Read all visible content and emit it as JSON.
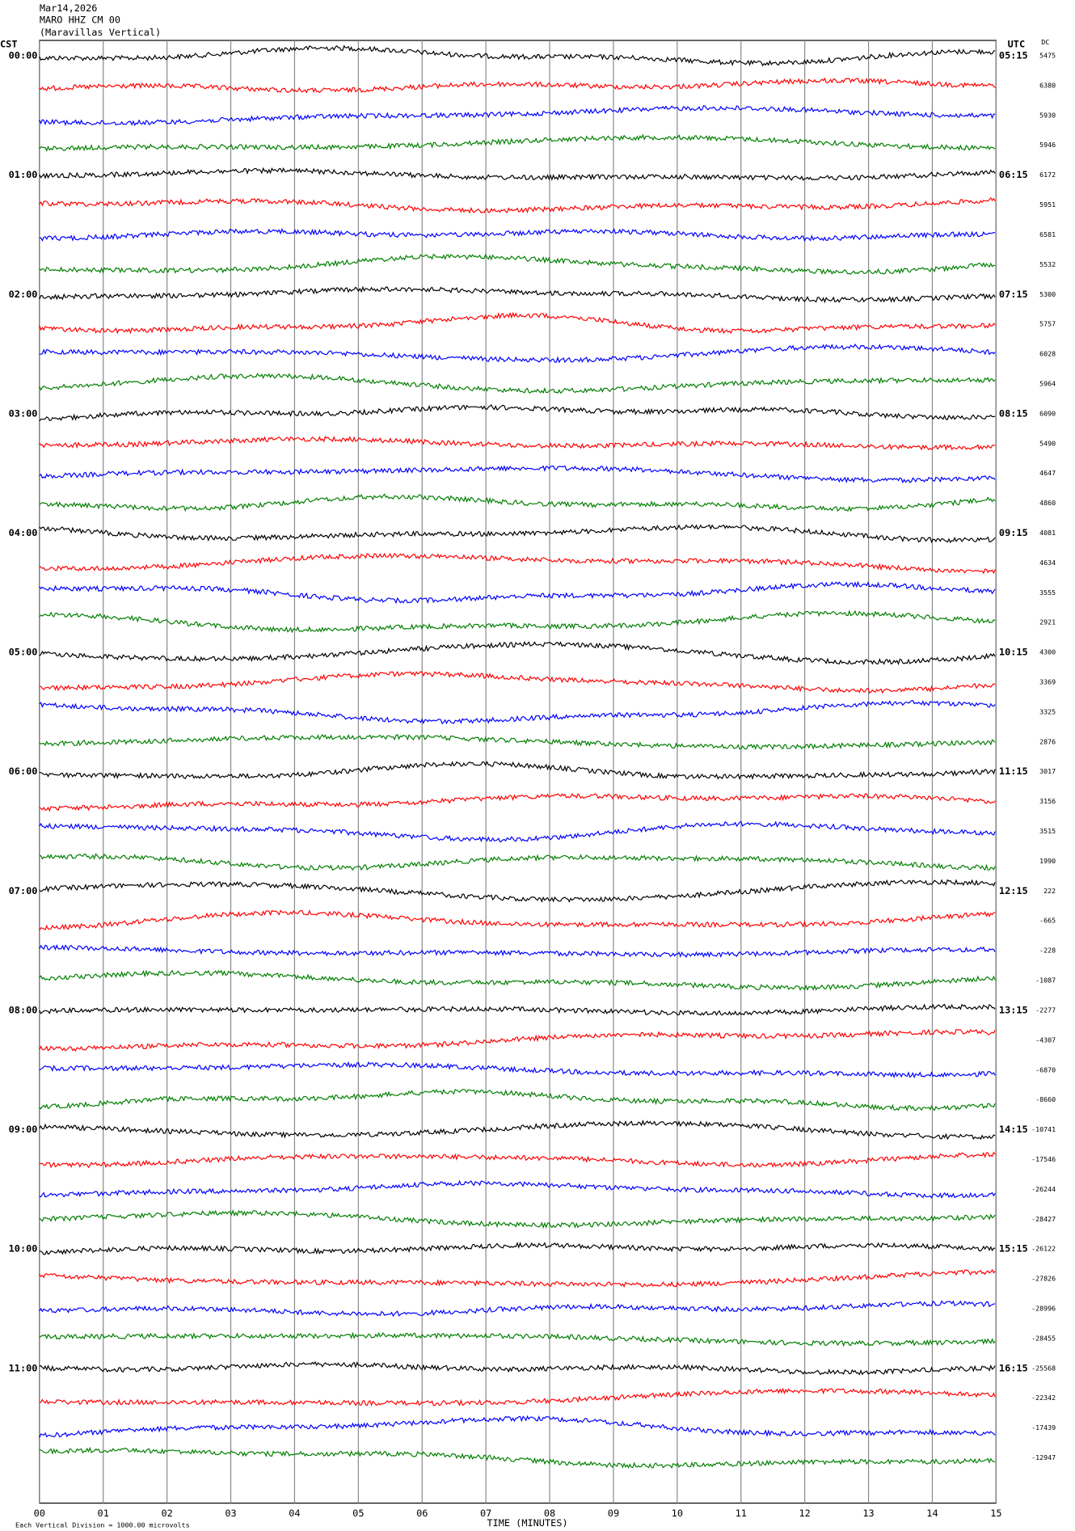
{
  "chart_data": {
    "type": "helicorder",
    "title_lines": [
      "Mar14,2026",
      "MARO HHZ CM 00",
      "(Maravillas Vertical)"
    ],
    "left_axis_label": "CST",
    "right_axis_label": "UTC",
    "dc_label": "DC",
    "left_labels": [
      "00:00",
      "01:00",
      "02:00",
      "03:00",
      "04:00",
      "05:00",
      "06:00",
      "07:00",
      "08:00",
      "09:00",
      "10:00",
      "11:00"
    ],
    "right_labels": [
      "05:15",
      "06:15",
      "07:15",
      "08:15",
      "09:15",
      "10:15",
      "11:15",
      "12:15",
      "13:15",
      "14:15",
      "15:15",
      "16:15"
    ],
    "dc": [
      5475,
      6380,
      5930,
      5946,
      6172,
      5951,
      6581,
      5532,
      5300,
      5757,
      6028,
      5964,
      6090,
      5490,
      4647,
      4860,
      4081,
      4634,
      3555,
      2921,
      4300,
      3369,
      3325,
      2876,
      3017,
      3156,
      3515,
      1990,
      222,
      -665,
      -228,
      -1087,
      -2277,
      -4307,
      -6870,
      -8660,
      -10741,
      -17546,
      -26244,
      -28427,
      -26122,
      -27826,
      -28996,
      -28455,
      -25568,
      -22342,
      -17439,
      -12947
    ],
    "trace_colors": [
      "#000000",
      "#ff0000",
      "#0000ff",
      "#007f00"
    ],
    "xlim": [
      0,
      15
    ],
    "xticks": [
      {
        "value": 0,
        "label": "00"
      },
      {
        "value": 1,
        "label": "01"
      },
      {
        "value": 2,
        "label": "02"
      },
      {
        "value": 3,
        "label": "03"
      },
      {
        "value": 4,
        "label": "04"
      },
      {
        "value": 5,
        "label": "05"
      },
      {
        "value": 6,
        "label": "06"
      },
      {
        "value": 7,
        "label": "07"
      },
      {
        "value": 8,
        "label": "08"
      },
      {
        "value": 9,
        "label": "09"
      },
      {
        "value": 10,
        "label": "10"
      },
      {
        "value": 11,
        "label": "11"
      },
      {
        "value": 12,
        "label": "12"
      },
      {
        "value": 13,
        "label": "13"
      },
      {
        "value": 14,
        "label": "14"
      },
      {
        "value": 15,
        "label": "15"
      }
    ],
    "xlabel": "TIME (MINUTES)",
    "scale_note": "Each Vertical Division = 1000.00 microvolts",
    "grid": true
  }
}
